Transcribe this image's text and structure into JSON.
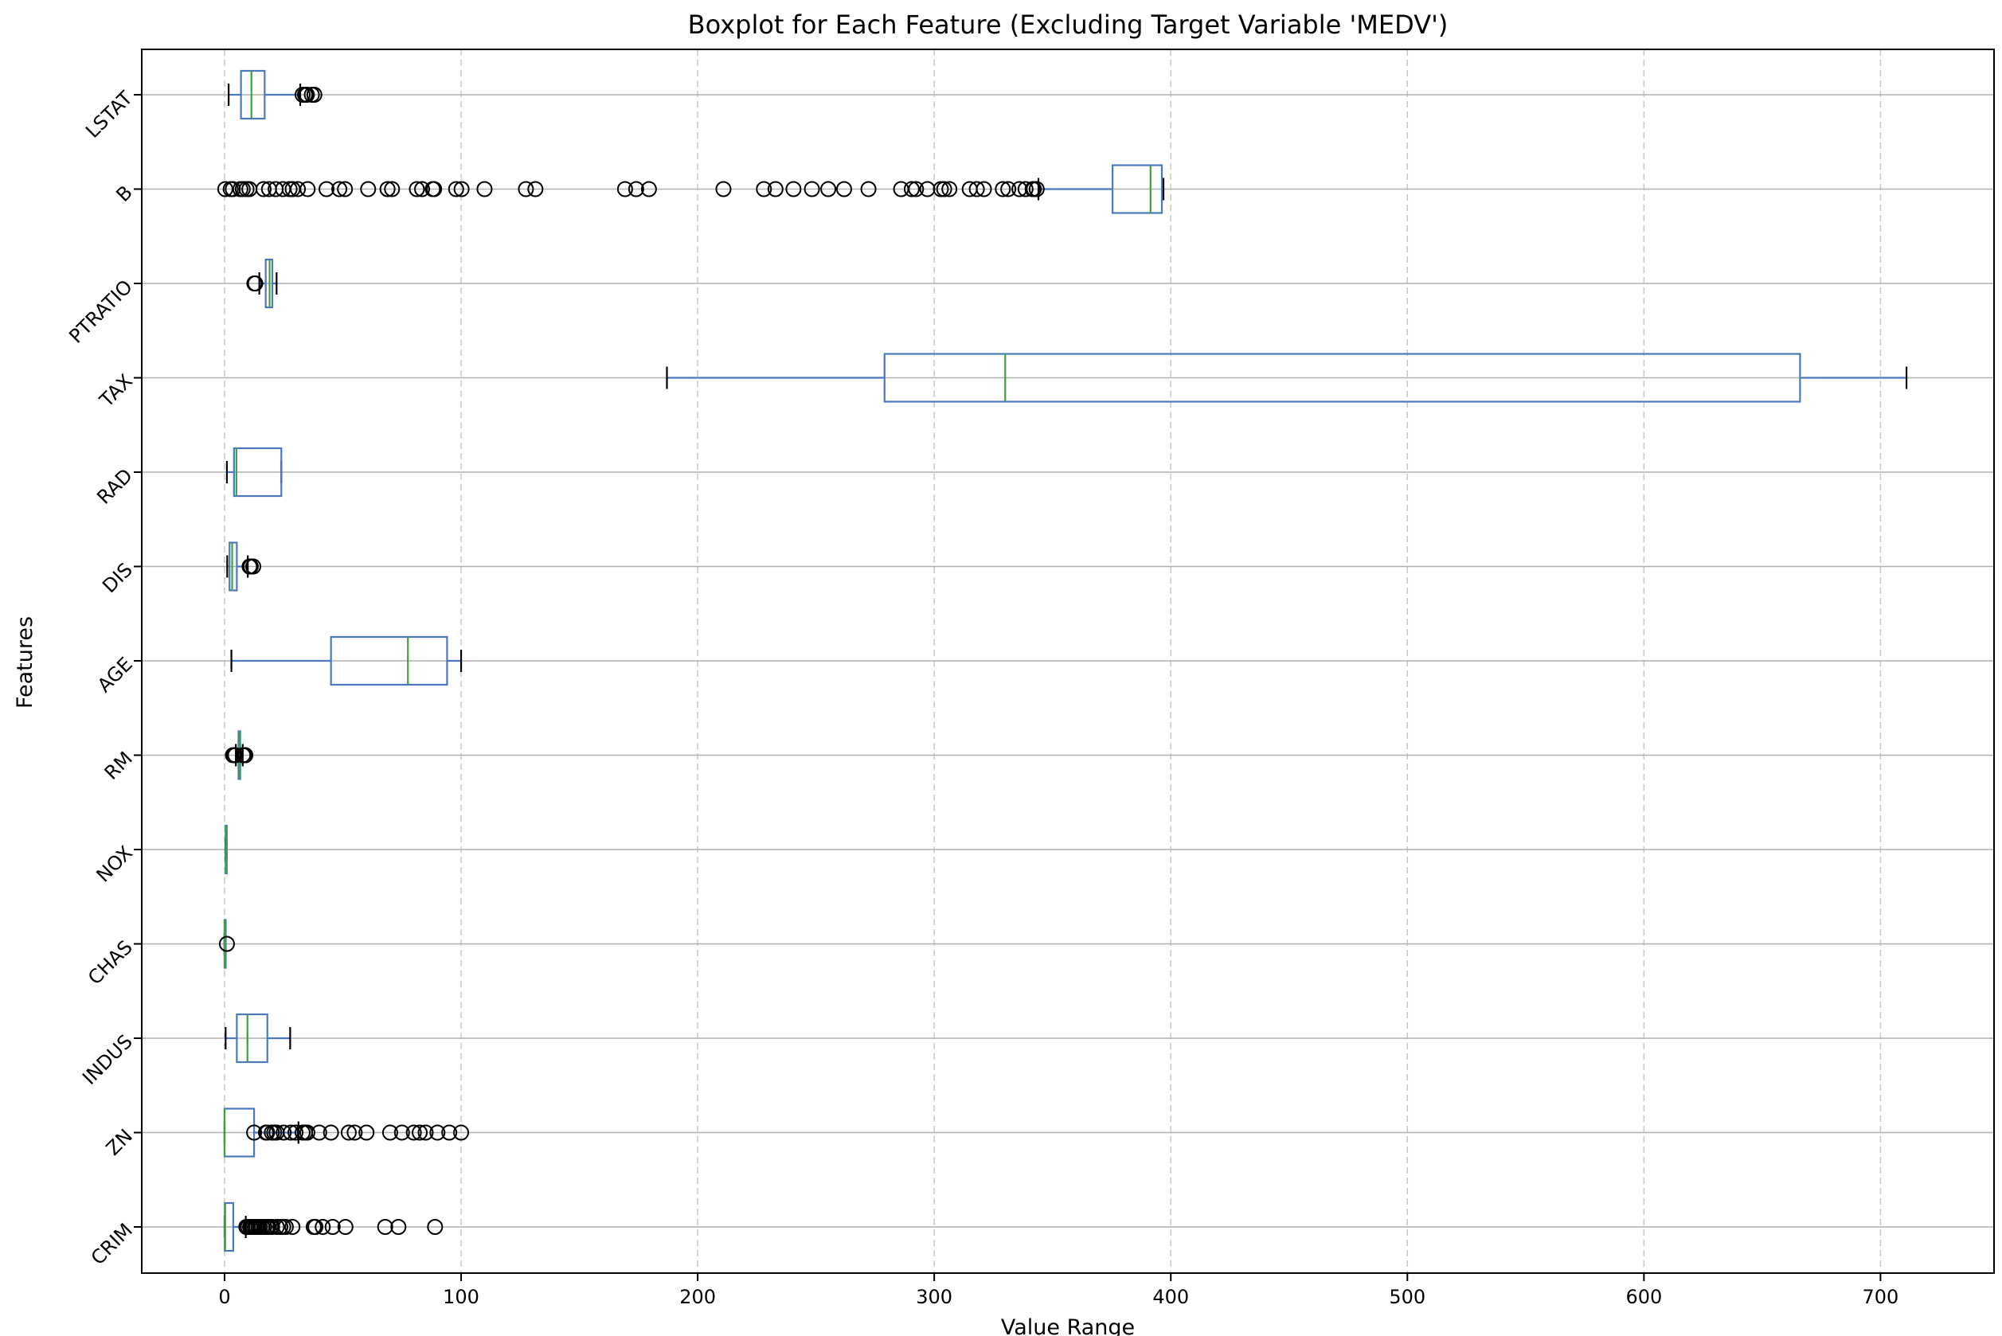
{
  "chart_data": {
    "type": "boxplot",
    "orientation": "horizontal",
    "title": "Boxplot for Each Feature (Excluding Target Variable 'MEDV')",
    "xlabel": "Value Range",
    "ylabel": "Features",
    "xlim": [
      -35,
      748
    ],
    "xticks": [
      0,
      100,
      200,
      300,
      400,
      500,
      600,
      700
    ],
    "grid": {
      "x": "dashed",
      "y": "solid"
    },
    "colors": {
      "box": "#4c78c0",
      "median": "#3aa33a",
      "flier": "#000000",
      "grid_x": "#c8c8c8",
      "grid_y": "#b0b0b0"
    },
    "series": [
      {
        "name": "CRIM",
        "whisker_low": 0.01,
        "q1": 0.08,
        "median": 0.26,
        "q3": 3.68,
        "whisker_high": 8.98,
        "fliers": [
          9.2,
          9.9,
          10.8,
          11.1,
          11.6,
          12.0,
          12.8,
          13.5,
          14.3,
          15.0,
          15.9,
          16.8,
          17.9,
          18.5,
          19.6,
          20.1,
          22.1,
          23.6,
          24.8,
          25.9,
          28.7,
          37.7,
          38.4,
          41.5,
          45.7,
          51.1,
          67.9,
          73.5,
          88.98
        ]
      },
      {
        "name": "ZN",
        "whisker_low": 0,
        "q1": 0,
        "median": 0,
        "q3": 12.5,
        "whisker_high": 31.25,
        "fliers": [
          12.5,
          17.5,
          18,
          20,
          21,
          22,
          25,
          28,
          30,
          33,
          34,
          35,
          40,
          45,
          52.5,
          55,
          60,
          70,
          75,
          80,
          82.5,
          85,
          90,
          95,
          100
        ]
      },
      {
        "name": "INDUS",
        "whisker_low": 0.46,
        "q1": 5.19,
        "median": 9.69,
        "q3": 18.1,
        "whisker_high": 27.74,
        "fliers": []
      },
      {
        "name": "CHAS",
        "whisker_low": 0,
        "q1": 0,
        "median": 0,
        "q3": 0,
        "whisker_high": 0,
        "fliers": [
          1
        ]
      },
      {
        "name": "NOX",
        "whisker_low": 0.385,
        "q1": 0.449,
        "median": 0.538,
        "q3": 0.624,
        "whisker_high": 0.871,
        "fliers": []
      },
      {
        "name": "RM",
        "whisker_low": 4.78,
        "q1": 5.89,
        "median": 6.21,
        "q3": 6.62,
        "whisker_high": 7.69,
        "fliers": [
          3.56,
          3.86,
          4.14,
          4.37,
          4.52,
          7.82,
          7.93,
          8.04,
          8.25,
          8.38,
          8.7,
          8.78
        ]
      },
      {
        "name": "AGE",
        "whisker_low": 2.9,
        "q1": 45.0,
        "median": 77.5,
        "q3": 94.07,
        "whisker_high": 100,
        "fliers": []
      },
      {
        "name": "DIS",
        "whisker_low": 1.13,
        "q1": 2.1,
        "median": 3.21,
        "q3": 5.19,
        "whisker_high": 9.82,
        "fliers": [
          10.59,
          10.71,
          11.09,
          12.13
        ]
      },
      {
        "name": "RAD",
        "whisker_low": 1,
        "q1": 4,
        "median": 5,
        "q3": 24,
        "whisker_high": 24,
        "fliers": []
      },
      {
        "name": "TAX",
        "whisker_low": 187,
        "q1": 279,
        "median": 330,
        "q3": 666,
        "whisker_high": 711,
        "fliers": []
      },
      {
        "name": "PTRATIO",
        "whisker_low": 14.7,
        "q1": 17.4,
        "median": 19.05,
        "q3": 20.2,
        "whisker_high": 22.0,
        "fliers": [
          12.6,
          13.0
        ]
      },
      {
        "name": "B",
        "whisker_low": 344.05,
        "q1": 375.38,
        "median": 391.44,
        "q3": 396.23,
        "whisker_high": 396.9,
        "fliers": [
          0.32,
          2.6,
          3.5,
          6.7,
          7.7,
          9.3,
          10.5,
          16.5,
          18.8,
          21.6,
          24.7,
          27.5,
          28.8,
          31.0,
          35.1,
          43.1,
          48.5,
          50.9,
          60.7,
          68.9,
          70.8,
          81.3,
          83.5,
          88.0,
          88.6,
          97.9,
          100.2,
          109.9,
          127.4,
          131.4,
          169.3,
          174.0,
          179.4,
          210.9,
          228.0,
          232.9,
          240.5,
          248.3,
          255.2,
          261.9,
          272.2,
          286.0,
          290.5,
          292.3,
          297.1,
          302.8,
          304.2,
          306.4,
          315.0,
          318.0,
          321.0,
          329.0,
          331.3,
          336.0,
          338.6,
          341.6,
          342.1,
          343.3
        ]
      },
      {
        "name": "LSTAT",
        "whisker_low": 1.73,
        "q1": 6.95,
        "median": 11.36,
        "q3": 16.96,
        "whisker_high": 31.99,
        "fliers": [
          33.0,
          34.0,
          34.4,
          34.8,
          36.9,
          37.97
        ]
      }
    ]
  }
}
